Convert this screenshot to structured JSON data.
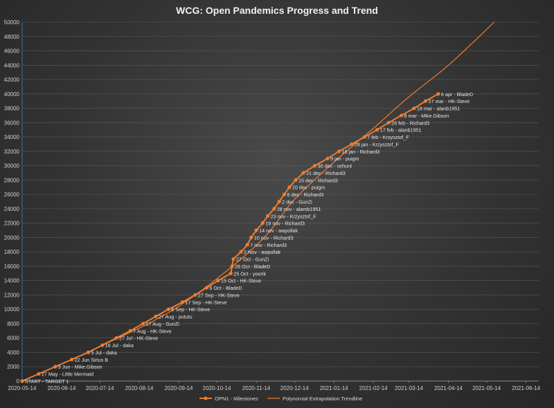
{
  "chart_data": {
    "type": "line",
    "title": "WCG: Open Pandemics Progress and Trend",
    "xlabel": "",
    "ylabel": "",
    "x_ticks": [
      "2020-05-14",
      "2020-06-14",
      "2020-07-14",
      "2020-08-14",
      "2020-09-14",
      "2020-10-14",
      "2020-11-14",
      "2020-12-14",
      "2021-01-14",
      "2021-02-14",
      "2021-03-14",
      "2021-04-14",
      "2021-05-14",
      "2021-06-14"
    ],
    "xlim": [
      "2020-05-14",
      "2021-06-24"
    ],
    "ylim": [
      0,
      50000
    ],
    "y_tick_step": 2000,
    "grid": "horizontal",
    "legend_position": "bottom",
    "colors": {
      "series": "#ed7d31",
      "trend": "#ed7d31",
      "grid": "#5a5a5a",
      "axis": "#8a8a8a"
    },
    "series": [
      {
        "name": "OPN1 - Milestones",
        "points": [
          {
            "x": "2020-05-14",
            "y": 0,
            "label": "START - TARGET 1"
          },
          {
            "x": "2020-05-27",
            "y": 1000,
            "label": "27 May - Little Mermaid"
          },
          {
            "x": "2020-06-09",
            "y": 2000,
            "label": "9 Jun - Mike.Gibson"
          },
          {
            "x": "2020-06-22",
            "y": 3000,
            "label": "22 Jun Sirius B"
          },
          {
            "x": "2020-07-05",
            "y": 4000,
            "label": "5 Jul - daka"
          },
          {
            "x": "2020-07-16",
            "y": 5000,
            "label": "16 Jul - daka"
          },
          {
            "x": "2020-07-27",
            "y": 6000,
            "label": "27 Jul - HK-Steve"
          },
          {
            "x": "2020-08-07",
            "y": 7000,
            "label": "7 Aug - HK-Steve"
          },
          {
            "x": "2020-08-17",
            "y": 8000,
            "label": "17 Aug - GunZi"
          },
          {
            "x": "2020-08-27",
            "y": 9000,
            "label": "27 Aug - pututu"
          },
          {
            "x": "2020-09-06",
            "y": 10000,
            "label": "6 Sep - HK-Steve"
          },
          {
            "x": "2020-09-17",
            "y": 11000,
            "label": "17 Sep - HK-Steve"
          },
          {
            "x": "2020-09-27",
            "y": 12000,
            "label": "27 Sep - HK-Steve"
          },
          {
            "x": "2020-10-06",
            "y": 13000,
            "label": "6 Oct - BladeD"
          },
          {
            "x": "2020-10-15",
            "y": 14000,
            "label": "15 Oct - HK-Steve"
          },
          {
            "x": "2020-10-25",
            "y": 15000,
            "label": "25 Oct - yoerik"
          },
          {
            "x": "2020-10-26",
            "y": 16000,
            "label": "26 Oct - BladeD"
          },
          {
            "x": "2020-10-27",
            "y": 17000,
            "label": "27 Oct - GunZi"
          },
          {
            "x": "2020-11-02",
            "y": 18000,
            "label": "2 Nov - awpollak"
          },
          {
            "x": "2020-11-07",
            "y": 19000,
            "label": "7 nov - Richard3"
          },
          {
            "x": "2020-11-10",
            "y": 20000,
            "label": "10 nov - Richard3"
          },
          {
            "x": "2020-11-14",
            "y": 21000,
            "label": "14 nov - awpollak"
          },
          {
            "x": "2020-11-19",
            "y": 22000,
            "label": "19 nov - Richard3"
          },
          {
            "x": "2020-11-23",
            "y": 23000,
            "label": "23 nov - Krzysztof_F"
          },
          {
            "x": "2020-11-28",
            "y": 24000,
            "label": "28 nov - alamb1951"
          },
          {
            "x": "2020-12-02",
            "y": 25000,
            "label": "2 dec - GunZi"
          },
          {
            "x": "2020-12-06",
            "y": 26000,
            "label": "6 dec - Richard3"
          },
          {
            "x": "2020-12-10",
            "y": 27000,
            "label": "10 dec - puigm"
          },
          {
            "x": "2020-12-15",
            "y": 28000,
            "label": "15 dec - Richard3"
          },
          {
            "x": "2020-12-21",
            "y": 29000,
            "label": "21 dec - Richard3"
          },
          {
            "x": "2020-12-30",
            "y": 30000,
            "label": "30 dec - cehunt"
          },
          {
            "x": "2021-01-09",
            "y": 31000,
            "label": "9 jan - puigm"
          },
          {
            "x": "2021-01-18",
            "y": 32000,
            "label": "18 jan - Richard3"
          },
          {
            "x": "2021-01-28",
            "y": 33000,
            "label": "28 jan - Krzysztof_F"
          },
          {
            "x": "2021-02-07",
            "y": 34000,
            "label": "7 feb - Krzysztof_F"
          },
          {
            "x": "2021-02-17",
            "y": 35000,
            "label": "17 feb - alanb1951"
          },
          {
            "x": "2021-02-26",
            "y": 36000,
            "label": "26 feb - Richard3"
          },
          {
            "x": "2021-03-08",
            "y": 37000,
            "label": "8 mar - Mike.Gibson"
          },
          {
            "x": "2021-03-18",
            "y": 38000,
            "label": "18 mar - alanb1951"
          },
          {
            "x": "2021-03-27",
            "y": 39000,
            "label": "27 mar - HK-Steve"
          },
          {
            "x": "2021-04-06",
            "y": 40000,
            "label": "6 apr - BladeD"
          }
        ]
      },
      {
        "name": "Polynomial Extrapolation Trendline",
        "type": "trendline",
        "curve": [
          {
            "x": "2020-05-14",
            "y": 0
          },
          {
            "x": "2020-07-14",
            "y": 4800
          },
          {
            "x": "2020-09-14",
            "y": 10400
          },
          {
            "x": "2020-11-14",
            "y": 18900
          },
          {
            "x": "2020-12-14",
            "y": 25300
          },
          {
            "x": "2021-01-14",
            "y": 30500
          },
          {
            "x": "2021-02-14",
            "y": 35200
          },
          {
            "x": "2021-03-14",
            "y": 39600
          },
          {
            "x": "2021-04-14",
            "y": 44000
          },
          {
            "x": "2021-05-20",
            "y": 50000
          }
        ]
      }
    ]
  }
}
